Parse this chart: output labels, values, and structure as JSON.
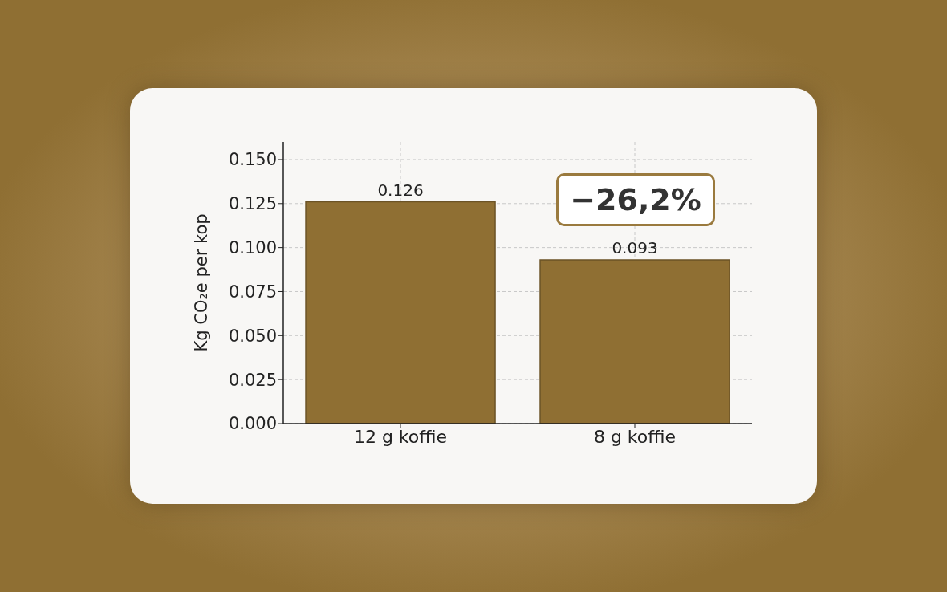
{
  "chart_data": {
    "type": "bar",
    "ylabel": "Kg CO₂e per kop",
    "categories": [
      "12 g koffie",
      "8 g koffie"
    ],
    "values": [
      0.126,
      0.093
    ],
    "color": "#8f6f33",
    "ylim": [
      0,
      0.16
    ],
    "yticks": [
      {
        "value": 0,
        "label": "0.000"
      },
      {
        "value": 0.025,
        "label": "0.025"
      },
      {
        "value": 0.05,
        "label": "0.050"
      },
      {
        "value": 0.075,
        "label": "0.075"
      },
      {
        "value": 0.1,
        "label": "0.100"
      },
      {
        "value": 0.125,
        "label": "0.125"
      },
      {
        "value": 0.15,
        "label": "0.150"
      }
    ],
    "grid": true,
    "data_labels": true,
    "annotations": [
      "−26,2%"
    ]
  }
}
